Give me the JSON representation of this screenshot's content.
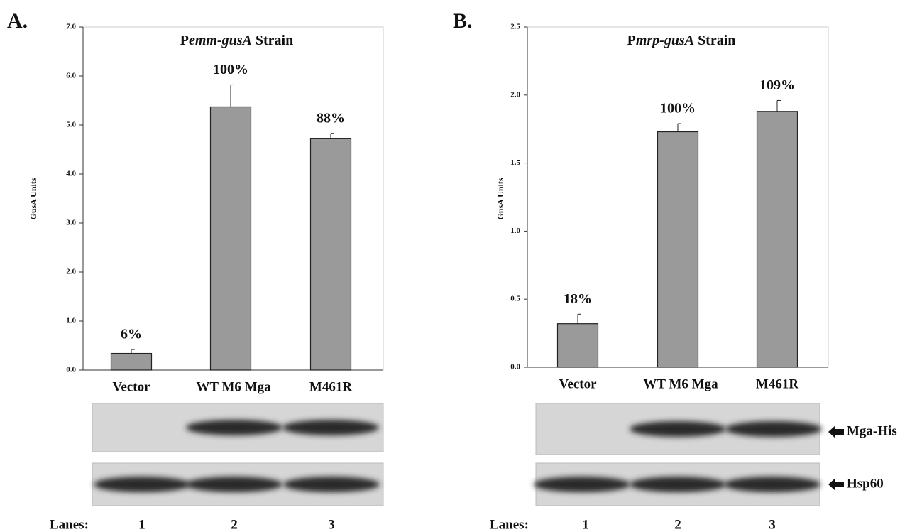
{
  "chart_data": [
    {
      "type": "bar",
      "panel_label": "A.",
      "title": [
        "P",
        "emm-gusA",
        " Strain"
      ],
      "title_italic": [
        false,
        true,
        false
      ],
      "y_label": "GusA Units",
      "categories": [
        "Vector",
        "WT M6 Mga",
        "M461R"
      ],
      "values": [
        0.34,
        5.37,
        4.73
      ],
      "errors": [
        0.08,
        0.45,
        0.1
      ],
      "percent_labels": [
        "6%",
        "100%",
        "88%"
      ],
      "color": "#9a9a9a",
      "ylim": [
        0,
        7
      ],
      "yticks": [
        {
          "value": 0,
          "label": "0.0"
        },
        {
          "value": 1,
          "label": "1.0"
        },
        {
          "value": 2,
          "label": "2.0"
        },
        {
          "value": 3,
          "label": "3.0"
        },
        {
          "value": 4,
          "label": "4.0"
        },
        {
          "value": 5,
          "label": "5.0"
        },
        {
          "value": 6,
          "label": "6.0"
        },
        {
          "value": 7,
          "label": "7.0"
        }
      ],
      "lanes_label": "Lanes:",
      "lanes": [
        "1",
        "2",
        "3"
      ]
    },
    {
      "type": "bar",
      "panel_label": "B.",
      "title": [
        "P",
        "mrp-gusA",
        " Strain"
      ],
      "title_italic": [
        false,
        true,
        false
      ],
      "y_label": "GusA Units",
      "categories": [
        "Vector",
        "WT M6 Mga",
        "M461R"
      ],
      "values": [
        0.32,
        1.73,
        1.88
      ],
      "errors": [
        0.07,
        0.06,
        0.08
      ],
      "percent_labels": [
        "18%",
        "100%",
        "109%"
      ],
      "color": "#9a9a9a",
      "ylim": [
        0,
        2.5
      ],
      "yticks": [
        {
          "value": 0,
          "label": "0.0"
        },
        {
          "value": 0.5,
          "label": "0.5"
        },
        {
          "value": 1,
          "label": "1.0"
        },
        {
          "value": 1.5,
          "label": "1.5"
        },
        {
          "value": 2,
          "label": "2.0"
        },
        {
          "value": 2.5,
          "label": "2.5"
        }
      ],
      "blot_labels": [
        "Mga-His",
        "Hsp60"
      ],
      "lanes_label": "Lanes:",
      "lanes": [
        "1",
        "2",
        "3"
      ]
    }
  ]
}
